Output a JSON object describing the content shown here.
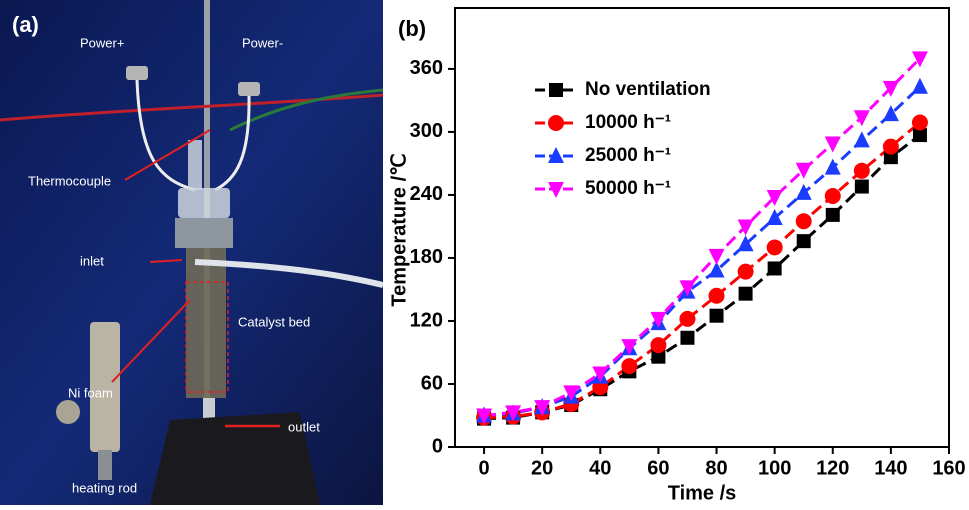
{
  "panel_a": {
    "label": "(a)",
    "annotations": [
      "Power+",
      "Power-",
      "Thermocouple",
      "inlet",
      "Catalyst bed",
      "Ni foam",
      "outlet",
      "heating rod"
    ]
  },
  "chart_data": {
    "type": "line",
    "label": "(b)",
    "x_label": "Time /s",
    "y_label": "Temperature /℃",
    "x": [
      0,
      10,
      20,
      30,
      40,
      50,
      60,
      70,
      80,
      90,
      100,
      110,
      120,
      130,
      140,
      150
    ],
    "series": [
      {
        "name": "No ventilation",
        "color": "#000000",
        "marker": "square",
        "values": [
          27,
          28,
          33,
          40,
          55,
          72,
          86,
          104,
          125,
          146,
          170,
          196,
          221,
          248,
          276,
          297
        ]
      },
      {
        "name": "10000 h⁻¹",
        "color": "#ff0000",
        "marker": "circle",
        "values": [
          28,
          29,
          33,
          41,
          57,
          77,
          97,
          122,
          144,
          167,
          190,
          215,
          239,
          263,
          286,
          309
        ]
      },
      {
        "name": "25000 h⁻¹",
        "color": "#1a3cff",
        "marker": "triangle-up",
        "values": [
          30,
          32,
          38,
          48,
          67,
          94,
          118,
          148,
          168,
          193,
          218,
          242,
          266,
          292,
          317,
          343
        ]
      },
      {
        "name": "50000 h⁻¹",
        "color": "#ff00ff",
        "marker": "triangle-down",
        "values": [
          30,
          33,
          38,
          52,
          70,
          96,
          122,
          152,
          182,
          210,
          238,
          264,
          289,
          314,
          342,
          370
        ]
      }
    ],
    "xlim": [
      -10,
      160
    ],
    "xticks": [
      0,
      20,
      40,
      60,
      80,
      100,
      120,
      140,
      160
    ],
    "ylim": [
      0,
      418
    ],
    "yticks": [
      0,
      60,
      120,
      180,
      240,
      300,
      360
    ],
    "line_style": "dashed",
    "legend": "upper-left"
  }
}
